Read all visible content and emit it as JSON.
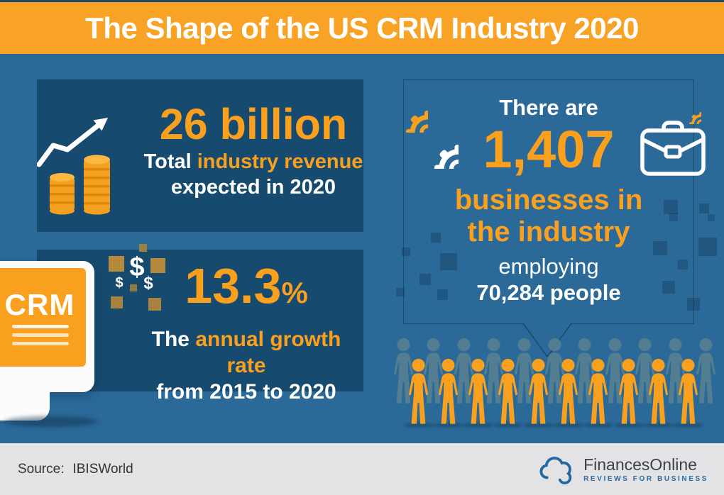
{
  "header": {
    "title": "The Shape of the US CRM Industry 2020"
  },
  "panels": {
    "revenue": {
      "value": "26 billion",
      "desc_prefix": "Total ",
      "desc_highlight": "industry revenue",
      "desc_line2": "expected in 2020"
    },
    "growth": {
      "value": "13.3",
      "unit": "%",
      "desc_prefix": "The ",
      "desc_highlight": "annual growth rate",
      "desc_line2": "from 2015 to 2020"
    },
    "businesses": {
      "intro": "There are",
      "value": "1,407",
      "highlight_line1": "businesses in",
      "highlight_line2": "the industry",
      "employ_line1": "employing",
      "employ_line2": "70,284 people"
    }
  },
  "monitor": {
    "label": "CRM"
  },
  "crowd": {
    "front_count": 10,
    "back_count": 11
  },
  "footer": {
    "source_label": "Source:",
    "source_value": "IBISWorld",
    "logo_name": "FinancesOnline",
    "logo_tagline": "REVIEWS FOR BUSINESS"
  },
  "colors": {
    "header_orange": "#F9A326",
    "accent_orange": "#F9A11E",
    "background_blue": "#2A6998",
    "panel_blue": "#174A6F",
    "crowd_back_gray": "#5E838F",
    "footer_gray": "#E3E3E5",
    "logo_blue": "#2368A2"
  },
  "chart_data": {
    "type": "table",
    "title": "The Shape of the US CRM Industry 2020",
    "source": "IBISWorld",
    "metrics": [
      {
        "label": "Total industry revenue expected in 2020",
        "value": "26 billion"
      },
      {
        "label": "The annual growth rate from 2015 to 2020",
        "value": "13.3%"
      },
      {
        "label": "Businesses in the industry",
        "value": 1407
      },
      {
        "label": "People employed",
        "value": 70284
      }
    ]
  }
}
